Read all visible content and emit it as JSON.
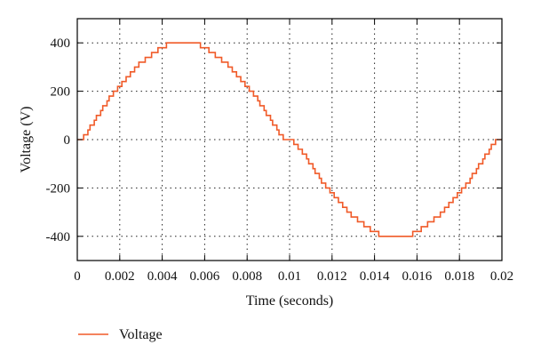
{
  "chart_data": {
    "type": "line",
    "title": "",
    "xlabel": "Time (seconds)",
    "ylabel": "Voltage (V)",
    "xlim": [
      0,
      0.02
    ],
    "ylim": [
      -500,
      500
    ],
    "x_ticks": [
      0,
      0.002,
      0.004,
      0.006,
      0.008,
      0.01,
      0.012,
      0.014,
      0.016,
      0.018,
      0.02
    ],
    "x_tick_labels": [
      "0",
      "0.002",
      "0.004",
      "0.006",
      "0.008",
      "0.01",
      "0.012",
      "0.014",
      "0.016",
      "0.018",
      "0.02"
    ],
    "y_ticks": [
      -400,
      -200,
      0,
      200,
      400
    ],
    "y_tick_labels": [
      "-400",
      "-200",
      "0",
      "200",
      "400"
    ],
    "grid": true,
    "grid_style": "dotted",
    "legend_position": "bottom-left",
    "series": [
      {
        "name": "Voltage",
        "color": "#f05a28",
        "step": true,
        "points": [
          [
            0,
            0
          ],
          [
            0.0003,
            20
          ],
          [
            0.0005,
            40
          ],
          [
            0.0006,
            60
          ],
          [
            0.0008,
            80
          ],
          [
            0.0009,
            100
          ],
          [
            0.0011,
            120
          ],
          [
            0.0012,
            140
          ],
          [
            0.0014,
            160
          ],
          [
            0.0015,
            180
          ],
          [
            0.0017,
            200
          ],
          [
            0.0019,
            220
          ],
          [
            0.0021,
            240
          ],
          [
            0.0023,
            260
          ],
          [
            0.0025,
            280
          ],
          [
            0.0027,
            300
          ],
          [
            0.0029,
            320
          ],
          [
            0.0032,
            340
          ],
          [
            0.0035,
            360
          ],
          [
            0.0038,
            380
          ],
          [
            0.0042,
            400
          ],
          [
            0.0058,
            380
          ],
          [
            0.0062,
            360
          ],
          [
            0.0065,
            340
          ],
          [
            0.0068,
            320
          ],
          [
            0.0071,
            300
          ],
          [
            0.0073,
            280
          ],
          [
            0.0075,
            260
          ],
          [
            0.0077,
            240
          ],
          [
            0.0079,
            220
          ],
          [
            0.0081,
            200
          ],
          [
            0.0083,
            180
          ],
          [
            0.0085,
            160
          ],
          [
            0.0086,
            140
          ],
          [
            0.0088,
            120
          ],
          [
            0.0089,
            100
          ],
          [
            0.0091,
            80
          ],
          [
            0.0092,
            60
          ],
          [
            0.0094,
            40
          ],
          [
            0.0095,
            20
          ],
          [
            0.0097,
            0
          ],
          [
            0.01,
            0
          ],
          [
            0.0102,
            -20
          ],
          [
            0.0104,
            -40
          ],
          [
            0.0106,
            -60
          ],
          [
            0.0108,
            -80
          ],
          [
            0.0109,
            -100
          ],
          [
            0.0111,
            -120
          ],
          [
            0.0112,
            -140
          ],
          [
            0.0114,
            -160
          ],
          [
            0.0115,
            -180
          ],
          [
            0.0117,
            -200
          ],
          [
            0.0119,
            -220
          ],
          [
            0.0121,
            -240
          ],
          [
            0.0123,
            -260
          ],
          [
            0.0125,
            -280
          ],
          [
            0.0127,
            -300
          ],
          [
            0.0129,
            -320
          ],
          [
            0.0132,
            -340
          ],
          [
            0.0135,
            -360
          ],
          [
            0.0138,
            -380
          ],
          [
            0.0142,
            -400
          ],
          [
            0.0158,
            -380
          ],
          [
            0.0162,
            -360
          ],
          [
            0.0165,
            -340
          ],
          [
            0.0168,
            -320
          ],
          [
            0.0171,
            -300
          ],
          [
            0.0173,
            -280
          ],
          [
            0.0175,
            -260
          ],
          [
            0.0177,
            -240
          ],
          [
            0.0179,
            -220
          ],
          [
            0.0181,
            -200
          ],
          [
            0.0183,
            -180
          ],
          [
            0.0185,
            -160
          ],
          [
            0.0186,
            -140
          ],
          [
            0.0188,
            -120
          ],
          [
            0.0189,
            -100
          ],
          [
            0.0191,
            -80
          ],
          [
            0.0192,
            -60
          ],
          [
            0.0194,
            -40
          ],
          [
            0.0195,
            -20
          ],
          [
            0.0197,
            0
          ],
          [
            0.02,
            0
          ]
        ]
      }
    ]
  }
}
